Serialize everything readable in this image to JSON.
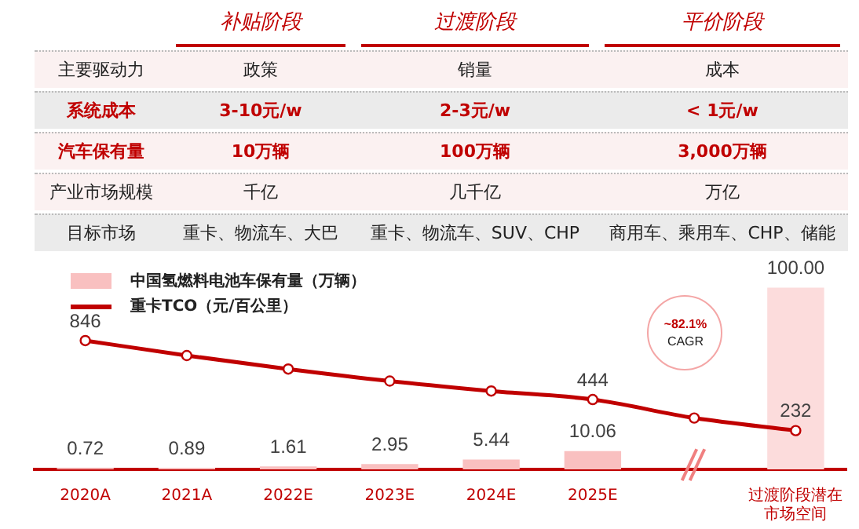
{
  "chart_data": [
    {
      "type": "other",
      "categories": [
        "补贴阶段",
        "过渡阶段",
        "平价阶段"
      ],
      "y_categories": [
        "主要驱动力",
        "系统成本",
        "汽车保有量",
        "产业市场规模",
        "目标市场"
      ],
      "cell_labels": [
        [
          "政策",
          "销量",
          "成本"
        ],
        [
          "3-10元/w",
          "2-3元/w",
          "< 1元/w"
        ],
        [
          "10万辆",
          "100万辆",
          "3,000万辆"
        ],
        [
          "千亿",
          "几千亿",
          "万亿"
        ],
        [
          "重卡、物流车、大巴",
          "重卡、物流车、SUV、CHP",
          "商用车、乘用车、CHP、储能"
        ]
      ]
    },
    {
      "type": "bar",
      "categories": [
        "2020A",
        "2021A",
        "2022E",
        "2023E",
        "2024E",
        "2025E",
        null,
        "过渡阶段潜在市场空间"
      ],
      "series": [
        {
          "name": "中国氢燃料电池车保有量（万辆）",
          "color": "#f9c0c0",
          "colors": [
            "#f9c0c0",
            "#f9c0c0",
            "#f9c0c0",
            "#f9c0c0",
            "#f9c0c0",
            "#f9c0c0",
            "#f9c0c0",
            "#fcdcdc"
          ],
          "values": [
            0.72,
            0.89,
            1.61,
            2.95,
            5.44,
            10.06,
            null,
            100
          ],
          "value_labels": [
            "0.72",
            "0.89",
            "1.61",
            "2.95",
            "5.44",
            "10.06",
            null,
            "100.00"
          ]
        },
        {
          "name": "重卡TCO（元/百公里）",
          "type": "line",
          "axis": "y2",
          "color": "#c00000",
          "values": [
            846,
            744,
            652,
            570,
            502,
            444,
            318,
            232
          ],
          "value_labels": [
            "846",
            null,
            null,
            null,
            null,
            "444",
            null,
            "232"
          ]
        }
      ],
      "marker": "circle",
      "legend": "top left",
      "annotations": [
        "~82.1%",
        "CAGR"
      ]
    }
  ]
}
